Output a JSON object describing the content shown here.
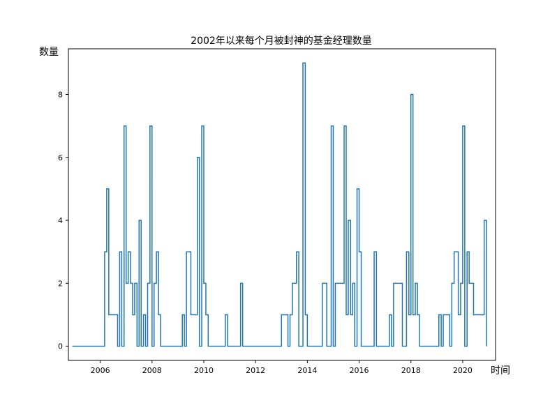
{
  "chart_data": {
    "type": "line",
    "drawstyle": "steps-post",
    "title": "2002年以来每个月被封神的基金经理数量",
    "xlabel": "时间",
    "ylabel": "数量",
    "xlim": [
      2004.77,
      2021.27
    ],
    "ylim": [
      -0.45,
      9.45
    ],
    "xticks": [
      2006,
      2008,
      2010,
      2012,
      2014,
      2016,
      2018,
      2020
    ],
    "xtick_labels": [
      "2006",
      "2008",
      "2010",
      "2012",
      "2014",
      "2016",
      "2018",
      "2020"
    ],
    "yticks": [
      0,
      2,
      4,
      6,
      8
    ],
    "ytick_labels": [
      "0",
      "2",
      "4",
      "6",
      "8"
    ],
    "grid": false,
    "line_color": "#1f77b4",
    "series": [
      {
        "x": [
          2004.92,
          2006.17,
          2006.25,
          2006.33,
          2006.67,
          2006.75,
          2006.83,
          2006.92,
          2007.0,
          2007.08,
          2007.17,
          2007.25,
          2007.33,
          2007.42,
          2007.5,
          2007.58,
          2007.67,
          2007.75,
          2007.83,
          2007.92,
          2008.0,
          2008.08,
          2008.17,
          2008.25,
          2008.33,
          2009.17,
          2009.25,
          2009.33,
          2009.5,
          2009.75,
          2009.83,
          2009.92,
          2010.0,
          2010.08,
          2010.17,
          2010.25,
          2010.83,
          2010.92,
          2011.42,
          2011.5,
          2012.92,
          2013.0,
          2013.25,
          2013.33,
          2013.42,
          2013.58,
          2013.67,
          2013.83,
          2013.92,
          2014.0,
          2014.08,
          2014.5,
          2014.58,
          2014.75,
          2014.92,
          2015.0,
          2015.08,
          2015.42,
          2015.5,
          2015.58,
          2015.67,
          2015.75,
          2015.83,
          2015.92,
          2016.0,
          2016.08,
          2016.17,
          2016.42,
          2016.58,
          2016.67,
          2017.08,
          2017.17,
          2017.25,
          2017.33,
          2017.67,
          2017.83,
          2017.92,
          2018.0,
          2018.08,
          2018.17,
          2018.25,
          2018.33,
          2019.0,
          2019.08,
          2019.17,
          2019.25,
          2019.5,
          2019.58,
          2019.67,
          2019.83,
          2019.92,
          2020.0,
          2020.08,
          2020.17,
          2020.25,
          2020.42,
          2020.75,
          2020.83,
          2020.92
        ],
        "y": [
          0,
          3,
          5,
          1,
          0,
          3,
          0,
          7,
          2,
          3,
          2,
          1,
          2,
          0,
          4,
          0,
          1,
          0,
          2,
          7,
          0,
          2,
          3,
          1,
          0,
          1,
          0,
          3,
          1,
          6,
          0,
          7,
          2,
          1,
          0,
          0,
          1,
          0,
          2,
          0,
          0,
          1,
          0,
          1,
          2,
          3,
          0,
          9,
          1,
          0,
          0,
          0,
          2,
          0,
          7,
          0,
          2,
          7,
          1,
          4,
          1,
          2,
          0,
          5,
          3,
          0,
          0,
          0,
          3,
          0,
          0,
          1,
          0,
          2,
          0,
          3,
          1,
          8,
          1,
          2,
          1,
          0,
          0,
          1,
          0,
          1,
          0,
          2,
          3,
          1,
          2,
          7,
          0,
          3,
          2,
          1,
          1,
          4,
          0
        ]
      }
    ]
  }
}
